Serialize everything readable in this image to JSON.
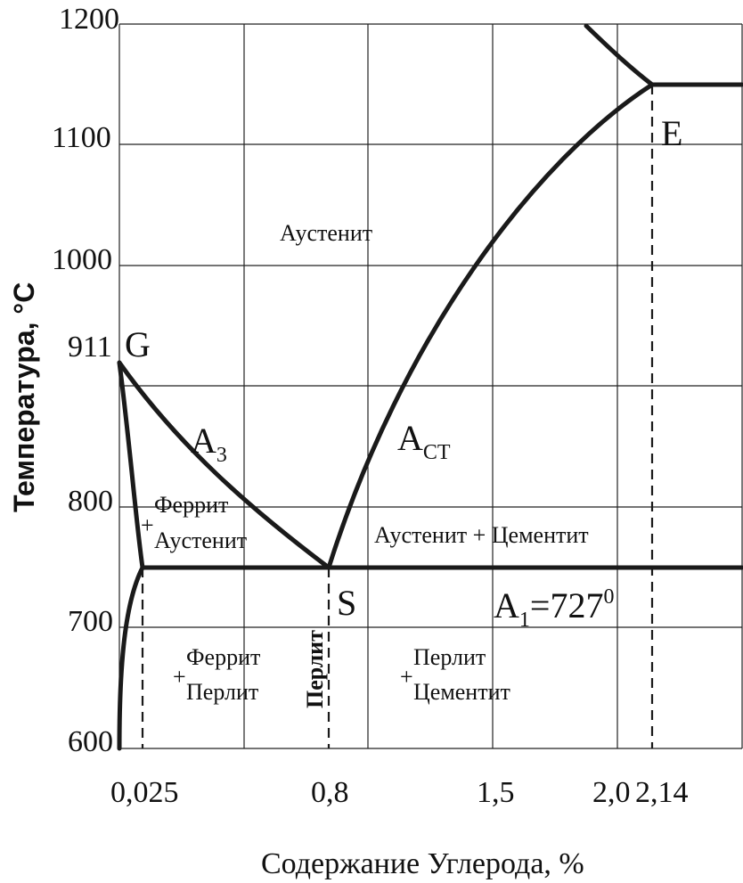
{
  "diagram": {
    "y_ticks": [
      "1200",
      "1100",
      "1000",
      "911",
      "800",
      "700",
      "600"
    ],
    "x_ticks": [
      "0,025",
      "0,8",
      "1,5",
      "2,0",
      "2,14"
    ],
    "y_axis_title": "Температура, °С",
    "x_axis_title": "Содержание Углерода, %",
    "points": {
      "G": "G",
      "E": "E",
      "S": "S"
    },
    "lines": {
      "a3_main": "A",
      "a3_sub": "3",
      "acm_main": "A",
      "acm_sub": "СТ",
      "a1_main": "A",
      "a1_sub": "1",
      "a1_value": "=727",
      "a1_degree": "0"
    },
    "regions": {
      "austenite": "Аустенит",
      "ferrite_austenite_1": "Феррит",
      "ferrite_austenite_2": "Аустенит",
      "austenite_cementite": "Аустенит + Цементит",
      "ferrite_pearlite_1": "Феррит",
      "ferrite_pearlite_2": "Перлит",
      "pearlite_cementite_1": "Перлит",
      "pearlite_cementite_2": "Цементит",
      "pearlite": "Перлит",
      "plus": "+"
    },
    "key_values": {
      "a1_temperature_c": 727,
      "g_temperature_c": 911,
      "e_carbon_pct": 2.14,
      "s_carbon_pct": 0.8,
      "p_carbon_pct": 0.025
    }
  }
}
